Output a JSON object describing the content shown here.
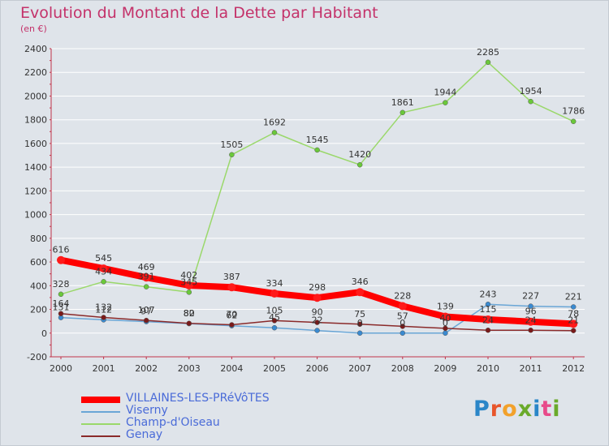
{
  "header": {
    "title": "Evolution du Montant de la Dette par Habitant",
    "subtitle": "(en €)"
  },
  "logo": {
    "text": "Proxiti",
    "colors": [
      "#2a86c8",
      "#e8552b",
      "#f2a12b",
      "#6aaa2a",
      "#2a86c8",
      "#e84a8a",
      "#6aaa2a"
    ]
  },
  "chart_data": {
    "type": "line",
    "title": "Evolution du Montant de la Dette par Habitant",
    "subtitle": "(en €)",
    "xlabel": "",
    "ylabel": "",
    "x": [
      "2000",
      "2001",
      "2002",
      "2003",
      "2004",
      "2005",
      "2006",
      "2007",
      "2008",
      "2009",
      "2010",
      "2011",
      "2012"
    ],
    "ylim": [
      -200,
      2400
    ],
    "yticks": [
      -200,
      0,
      200,
      400,
      600,
      800,
      1000,
      1200,
      1400,
      1600,
      1800,
      2000,
      2200,
      2400
    ],
    "grid": "horizontal",
    "legend_position": "bottom-left",
    "series": [
      {
        "name": "VILLAINES-LES-PRéVôTES",
        "color": "#ff0000",
        "marker_color": "#ff1a1a",
        "thick": true,
        "values": [
          616,
          545,
          469,
          402,
          387,
          334,
          298,
          346,
          228,
          139,
          115,
          96,
          78
        ],
        "labels": [
          "616",
          "545",
          "469",
          "402",
          "387",
          "334",
          "298",
          "346",
          "228",
          "139",
          "115",
          "96",
          "78"
        ]
      },
      {
        "name": "Viserny",
        "color": "#6aa6d6",
        "marker_color": "#3a8ad0",
        "thick": false,
        "values": [
          131,
          112,
          97,
          80,
          62,
          45,
          22,
          0,
          0,
          0,
          243,
          227,
          221
        ],
        "labels": [
          "131",
          "112",
          "97",
          "80",
          "62",
          "45",
          "22",
          "0",
          "0",
          "0",
          "243",
          "227",
          "221"
        ]
      },
      {
        "name": "Champ-d'Oiseau",
        "color": "#9ad86a",
        "marker_color": "#6ac83a",
        "thick": false,
        "values": [
          328,
          434,
          391,
          345,
          1505,
          1692,
          1545,
          1420,
          1861,
          1944,
          2285,
          1954,
          1786
        ],
        "labels": [
          "328",
          "434",
          "391",
          "345",
          "1505",
          "1692",
          "1545",
          "1420",
          "1861",
          "1944",
          "2285",
          "1954",
          "1786"
        ]
      },
      {
        "name": "Genay",
        "color": "#8a2a2a",
        "marker_color": "#7a1a1a",
        "thick": false,
        "values": [
          164,
          132,
          107,
          82,
          70,
          105,
          90,
          75,
          57,
          40,
          24,
          24,
          21
        ],
        "labels": [
          "164",
          "132",
          "107",
          "82",
          "70",
          "105",
          "90",
          "75",
          "57",
          "40",
          "24",
          "24",
          "21"
        ]
      }
    ]
  }
}
